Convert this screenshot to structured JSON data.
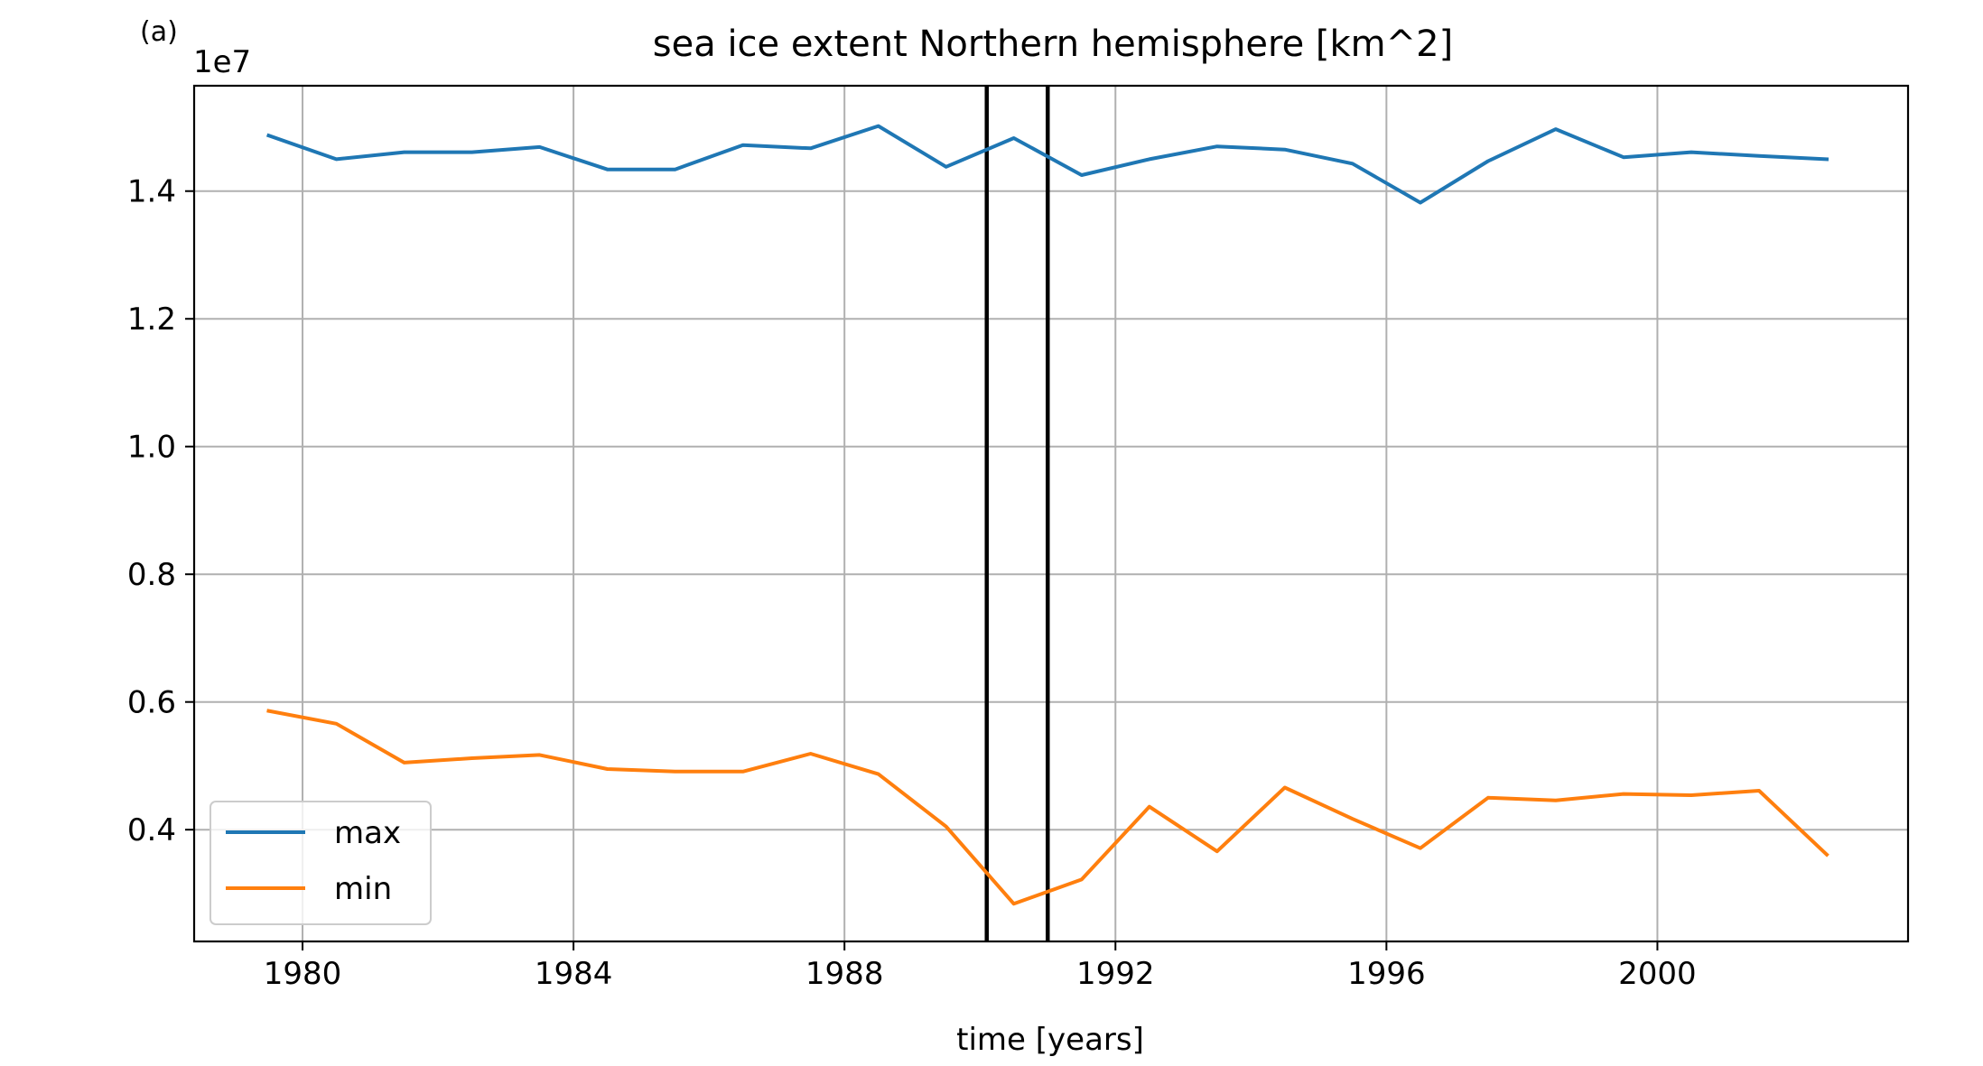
{
  "chart_data": {
    "type": "line",
    "panel_label": "(a)",
    "title": "sea ice extent Northern hemisphere [km^2]",
    "xlabel": "time [years]",
    "ylabel": "",
    "offset_label": "1e7",
    "xlim": [
      1978.4,
      2003.7
    ],
    "ylim": [
      0.225,
      1.565
    ],
    "xticks": [
      1980,
      1984,
      1988,
      1992,
      1996,
      2000
    ],
    "xtick_labels": [
      "1980",
      "1984",
      "1988",
      "1992",
      "1996",
      "2000"
    ],
    "yticks": [
      0.4,
      0.6,
      0.8,
      1.0,
      1.2,
      1.4
    ],
    "ytick_labels": [
      "0.4",
      "0.6",
      "0.8",
      "1.0",
      "1.2",
      "1.4"
    ],
    "grid": true,
    "legend_position": "lower-left",
    "vlines": [
      1990.1,
      1991.0
    ],
    "x": [
      1979.5,
      1980.5,
      1981.5,
      1982.5,
      1983.5,
      1984.5,
      1985.5,
      1986.5,
      1987.5,
      1988.5,
      1989.5,
      1990.5,
      1991.5,
      1992.5,
      1993.5,
      1994.5,
      1995.5,
      1996.5,
      1997.5,
      1998.5,
      1999.5,
      2000.5,
      2001.5,
      2002.5
    ],
    "series": [
      {
        "name": "max",
        "color": "#1f77b4",
        "values": [
          1.487,
          1.45,
          1.461,
          1.461,
          1.469,
          1.434,
          1.434,
          1.472,
          1.467,
          1.502,
          1.438,
          1.483,
          1.425,
          1.45,
          1.47,
          1.465,
          1.443,
          1.382,
          1.447,
          1.497,
          1.453,
          1.461,
          1.455,
          1.45
        ]
      },
      {
        "name": "min",
        "color": "#ff7f0e",
        "values": [
          0.586,
          0.566,
          0.505,
          0.512,
          0.517,
          0.495,
          0.491,
          0.491,
          0.519,
          0.487,
          0.405,
          0.284,
          0.322,
          0.436,
          0.366,
          0.466,
          0.417,
          0.371,
          0.45,
          0.446,
          0.456,
          0.454,
          0.461,
          0.361
        ]
      }
    ]
  }
}
